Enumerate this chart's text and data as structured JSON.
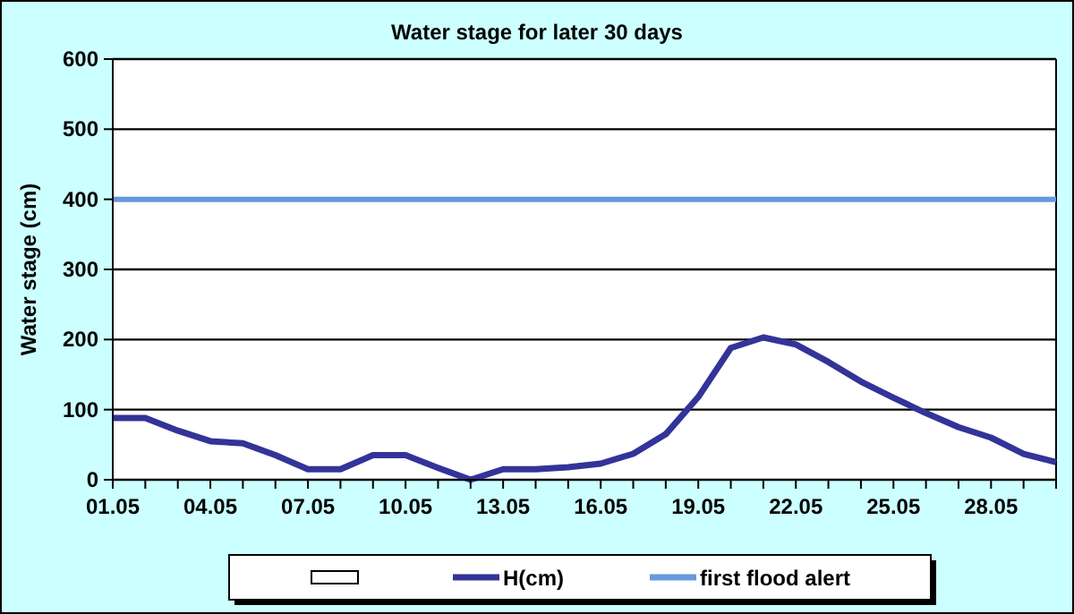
{
  "chart_data": {
    "type": "line",
    "title": "Water stage for later 30 days",
    "ylabel": "Water stage (cm)",
    "categories": [
      "01.05",
      null,
      null,
      "04.05",
      null,
      null,
      "07.05",
      null,
      null,
      "10.05",
      null,
      null,
      "13.05",
      null,
      null,
      "16.05",
      null,
      null,
      "19.05",
      null,
      null,
      "22.05",
      null,
      null,
      "25.05",
      null,
      null,
      "28.05",
      null,
      null
    ],
    "series": [
      {
        "name": "H(cm)",
        "color": "#333399",
        "values": [
          88,
          88,
          70,
          55,
          52,
          35,
          15,
          15,
          35,
          35,
          17,
          0,
          15,
          15,
          18,
          23,
          37,
          65,
          118,
          188,
          203,
          193,
          168,
          140,
          117,
          95,
          75,
          60,
          37,
          25
        ]
      }
    ],
    "ref_lines": [
      {
        "axis": "y",
        "value": 400,
        "label": "first flood alert",
        "color": "#6699dd"
      }
    ],
    "ylim": [
      0,
      600
    ],
    "yticks": [
      0,
      100,
      200,
      300,
      400,
      500,
      600
    ],
    "grid": "y",
    "legend": "bottom",
    "marker": "none",
    "line_style": "solid"
  }
}
